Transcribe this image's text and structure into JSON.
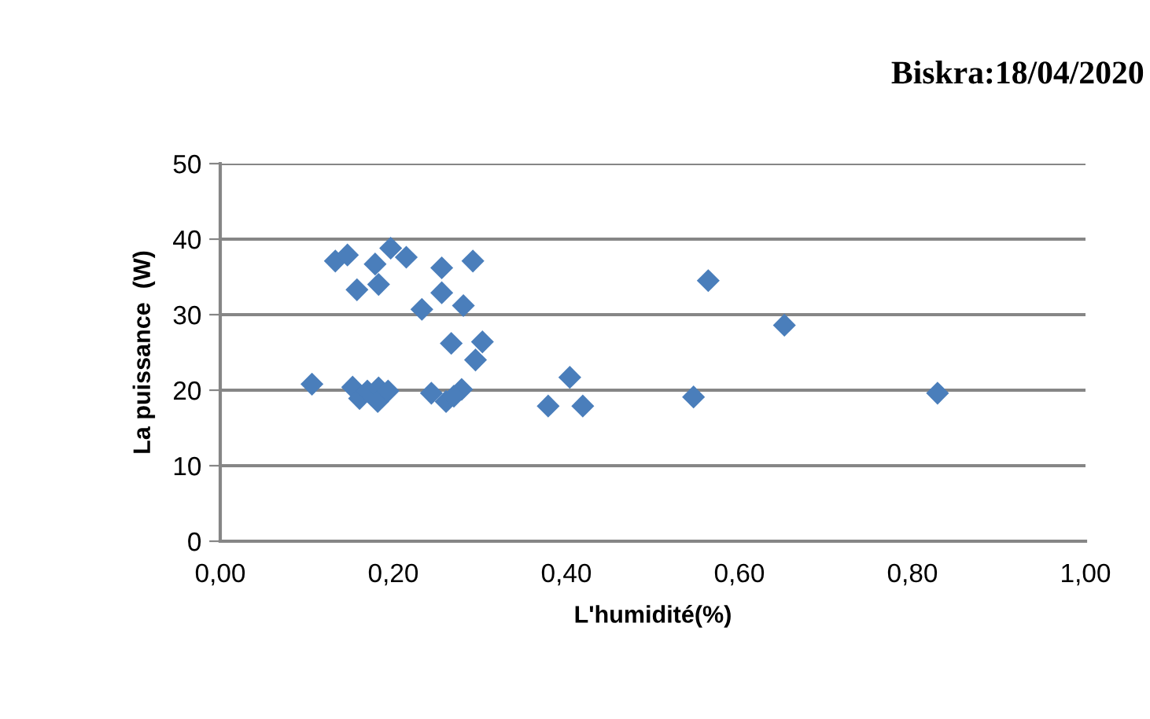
{
  "chart_data": {
    "type": "scatter",
    "title": "Biskra:18/04/2020",
    "xlabel": "L'humidité(%)",
    "ylabel": "La puissance  (W)",
    "x": [
      0.133,
      0.147,
      0.179,
      0.197,
      0.215,
      0.158,
      0.183,
      0.256,
      0.292,
      0.256,
      0.233,
      0.281,
      0.267,
      0.303,
      0.295,
      0.106,
      0.153,
      0.161,
      0.17,
      0.183,
      0.182,
      0.194,
      0.244,
      0.261,
      0.279,
      0.27,
      0.564,
      0.652,
      0.404,
      0.379,
      0.419,
      0.547,
      0.829
    ],
    "values": [
      37.1,
      37.9,
      36.7,
      38.8,
      37.6,
      33.3,
      34.0,
      36.2,
      37.1,
      32.9,
      30.7,
      31.2,
      26.2,
      26.4,
      24.0,
      20.8,
      20.4,
      18.9,
      19.9,
      20.3,
      18.5,
      19.9,
      19.6,
      18.5,
      20.1,
      19.2,
      34.5,
      28.6,
      21.7,
      17.9,
      17.9,
      19.1,
      19.6
    ],
    "color": "#4a7ebb",
    "marker": "diamond",
    "xlim": [
      0,
      1
    ],
    "ylim": [
      0,
      50
    ],
    "xticks": [
      {
        "value": 0,
        "label": "0,00"
      },
      {
        "value": 0.2,
        "label": "0,20"
      },
      {
        "value": 0.4,
        "label": "0,40"
      },
      {
        "value": 0.6,
        "label": "0,60"
      },
      {
        "value": 0.8,
        "label": "0,80"
      },
      {
        "value": 1,
        "label": "1,00"
      }
    ],
    "yticks": [
      0,
      10,
      20,
      30,
      40,
      50
    ],
    "grid": "y"
  }
}
